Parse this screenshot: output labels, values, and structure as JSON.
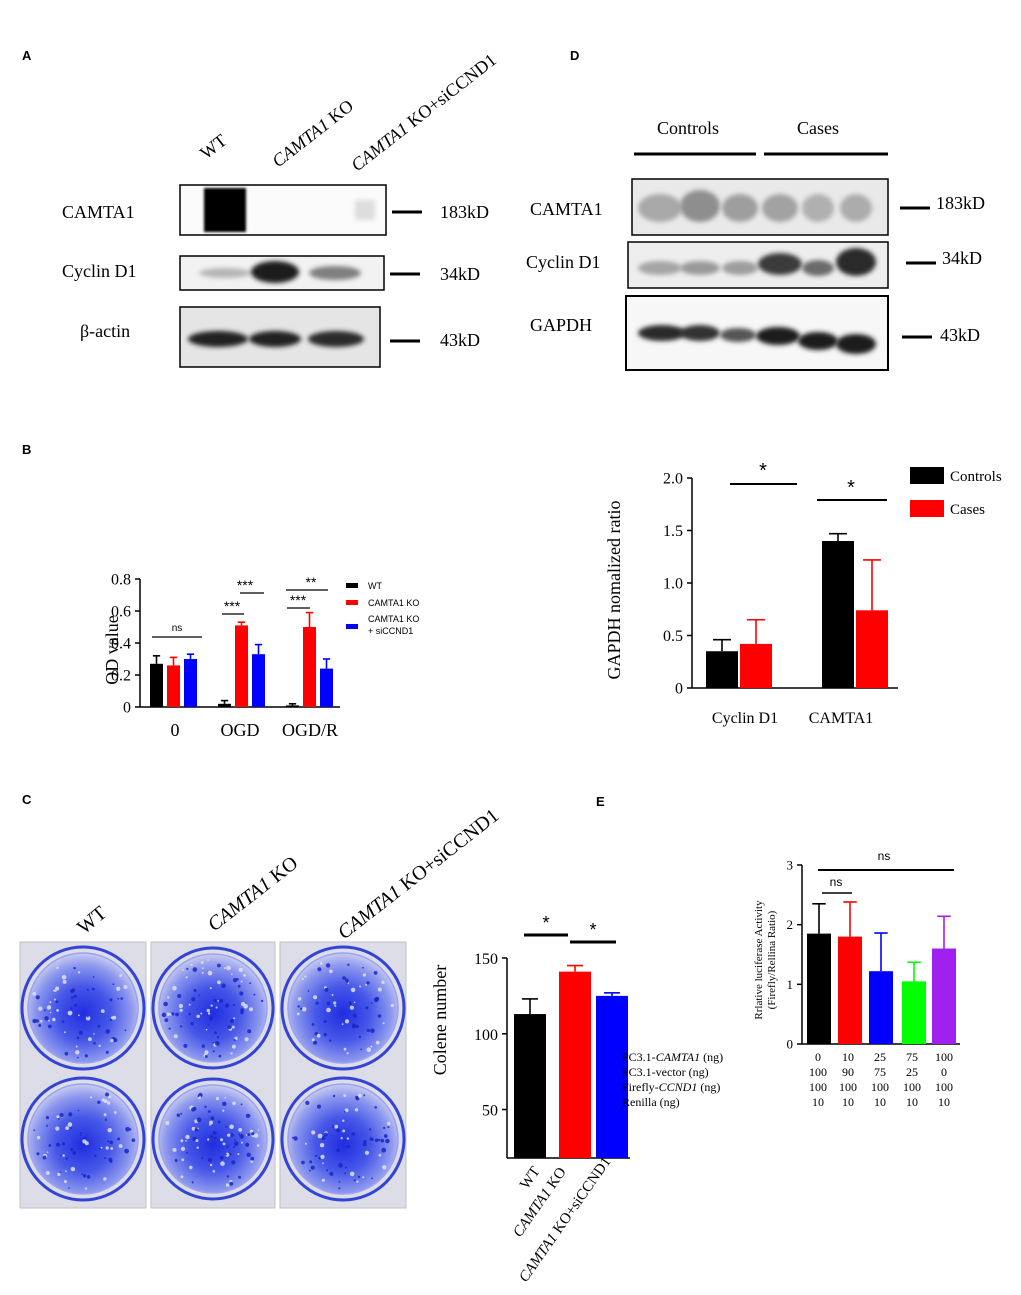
{
  "panels": {
    "A": "A",
    "B": "B",
    "C": "C",
    "D": "D",
    "E": "E"
  },
  "panel_a": {
    "lanes": [
      "WT",
      "CAMTA1 KO",
      "CAMTA1 KO+siCCND1"
    ],
    "lane_italic_parts": [
      "",
      "CAMTA1",
      "CAMTA1"
    ],
    "lane_rest_parts": [
      "WT",
      " KO",
      " KO+siCCND1"
    ],
    "rows": [
      {
        "label": "CAMTA1",
        "size": "183kD"
      },
      {
        "label": "Cyclin  D1",
        "size": "34kD"
      },
      {
        "label": "β-actin",
        "size": "43kD"
      }
    ]
  },
  "panel_d": {
    "groups": [
      "Controls",
      "Cases"
    ],
    "rows": [
      {
        "label": "CAMTA1",
        "size": "183kD"
      },
      {
        "label": "Cyclin  D1",
        "size": "34kD"
      },
      {
        "label": "GAPDH",
        "size": "43kD"
      }
    ]
  },
  "colors": {
    "black": "#000000",
    "red": "#ff0000",
    "blue": "#0000ff",
    "green": "#00ff00",
    "purple": "#a020f0"
  },
  "chart_data": [
    {
      "id": "B",
      "type": "bar",
      "categories": [
        "0",
        "OGD",
        "OGD/R"
      ],
      "ylabel": "OD value",
      "ylim": [
        0,
        0.8
      ],
      "yticks": [
        "0",
        "0.2",
        "0.4",
        "0.6",
        "0.8"
      ],
      "series": [
        {
          "name": "WT",
          "values": [
            0.27,
            0.02,
            0.01
          ],
          "errors": [
            0.05,
            0.02,
            0.01
          ]
        },
        {
          "name": "CAMTA1 KO",
          "values": [
            0.26,
            0.51,
            0.5
          ],
          "errors": [
            0.05,
            0.02,
            0.09
          ]
        },
        {
          "name": "CAMTA1 KO\n+ siCCND1",
          "values": [
            0.3,
            0.33,
            0.24
          ],
          "errors": [
            0.03,
            0.06,
            0.06
          ]
        }
      ],
      "legend": [
        "WT",
        "CAMTA1 KO",
        "CAMTA1 KO",
        "+ siCCND1"
      ],
      "annotations": [
        "ns",
        "***",
        "***",
        "**",
        "***"
      ]
    },
    {
      "id": "D",
      "type": "bar",
      "categories": [
        "Cyclin D1",
        "CAMTA1"
      ],
      "ylabel": "GAPDH  nomalized  ratio",
      "ylim": [
        0,
        2.0
      ],
      "yticks": [
        "0",
        "0.5",
        "1.0",
        "1.5",
        "2.0"
      ],
      "series": [
        {
          "name": "Controls",
          "values": [
            0.35,
            1.4
          ],
          "errors": [
            0.11,
            0.07
          ]
        },
        {
          "name": "Cases",
          "values": [
            0.42,
            0.74
          ],
          "errors": [
            0.23,
            0.48
          ]
        }
      ],
      "legend_position": "top-right",
      "annotations": [
        "*",
        "*"
      ]
    },
    {
      "id": "C",
      "type": "bar",
      "categories": [
        "WT",
        "CAMTA1 KO",
        "CAMTA1 KO+siCCND1"
      ],
      "category_italic": [
        "",
        "CAMTA1",
        "CAMTA1"
      ],
      "category_rest": [
        "WT",
        " KO",
        " KO+siCCND1"
      ],
      "ylabel": "Colene number",
      "ylim": [
        0,
        150
      ],
      "yticks": [
        "50",
        "100",
        "150"
      ],
      "values": [
        113,
        141,
        125
      ],
      "errors": [
        5,
        2,
        1
      ],
      "annotations": [
        "*",
        "*"
      ]
    },
    {
      "id": "E",
      "type": "bar",
      "ylabel_lines": [
        "Rrlative luciferase Activity",
        "(Firefly/Rellina Ratio)"
      ],
      "ylim": [
        0,
        3
      ],
      "yticks": [
        "0",
        "1",
        "2",
        "3"
      ],
      "values": [
        1.85,
        1.8,
        1.22,
        1.05,
        1.6
      ],
      "errors": [
        0.5,
        0.58,
        0.64,
        0.32,
        0.54
      ],
      "annotations": [
        "ns",
        "ns"
      ],
      "table": [
        {
          "label_pre": "PC3.1-",
          "label_italic": "CAMTA1",
          "label_post": " (ng)",
          "values": [
            "0",
            "10",
            "25",
            "75",
            "100"
          ]
        },
        {
          "label_pre": "PC3.1-vector (ng)",
          "label_italic": "",
          "label_post": "",
          "values": [
            "100",
            "90",
            "75",
            "25",
            "0"
          ]
        },
        {
          "label_pre": "Firefly-",
          "label_italic": "CCND1",
          "label_post": " (ng)",
          "values": [
            "100",
            "100",
            "100",
            "100",
            "100"
          ]
        },
        {
          "label_pre": "Renilla (ng)",
          "label_italic": "",
          "label_post": "",
          "values": [
            "10",
            "10",
            "10",
            "10",
            "10"
          ]
        }
      ]
    }
  ]
}
